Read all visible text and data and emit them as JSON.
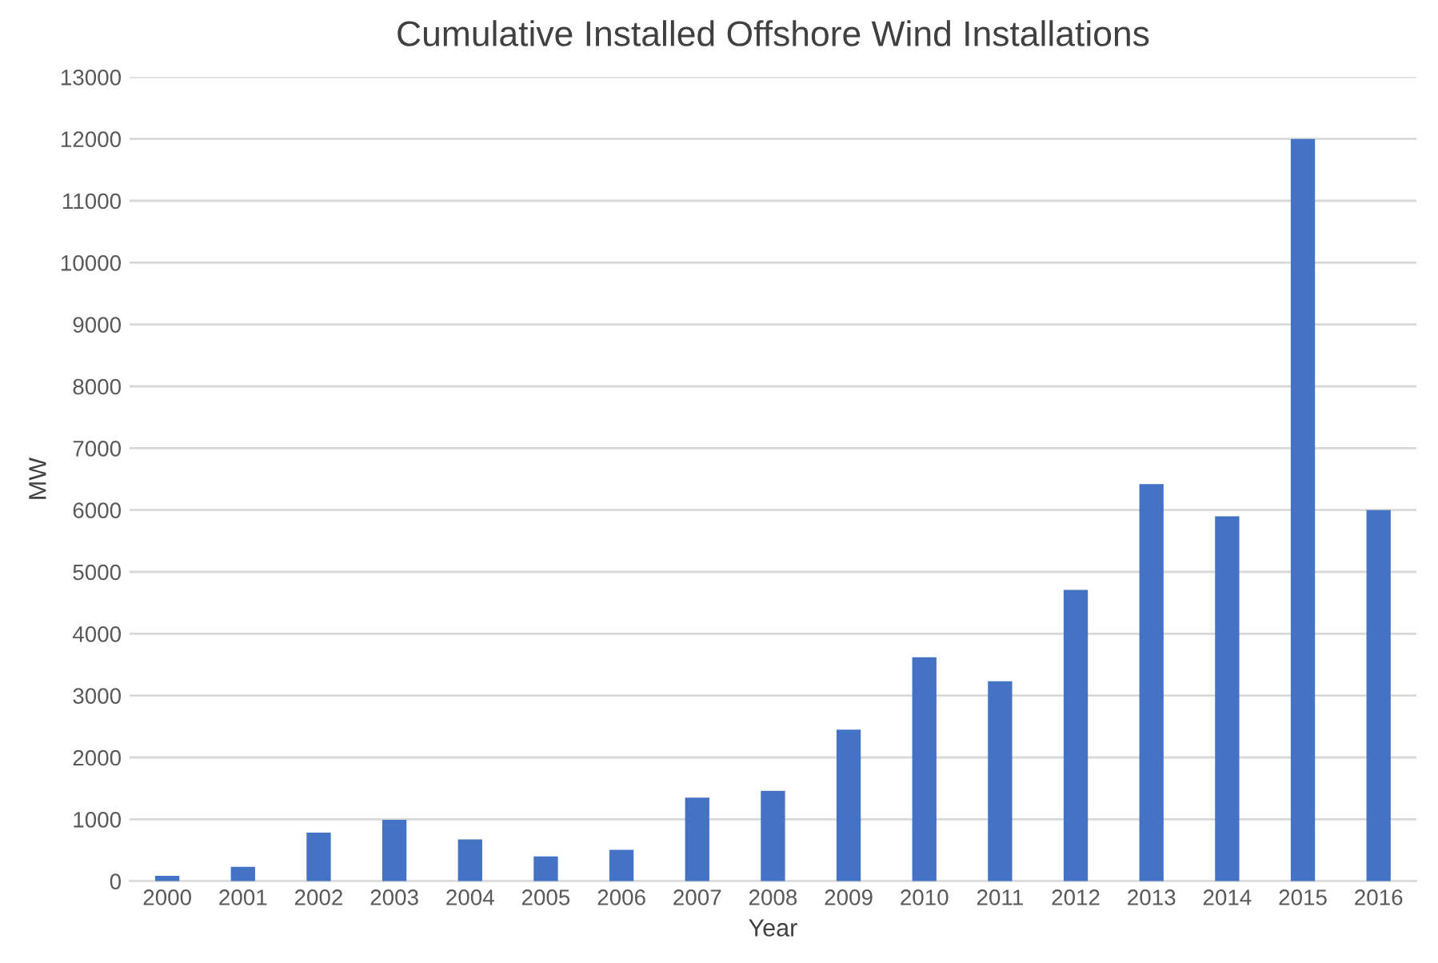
{
  "chart_data": {
    "type": "bar",
    "title": "Cumulative Installed Offshore Wind Installations",
    "xlabel": "Year",
    "ylabel": "MW",
    "categories": [
      "2000",
      "2001",
      "2002",
      "2003",
      "2004",
      "2005",
      "2006",
      "2007",
      "2008",
      "2009",
      "2010",
      "2011",
      "2012",
      "2013",
      "2014",
      "2015",
      "2016"
    ],
    "values": [
      85,
      230,
      785,
      990,
      675,
      400,
      505,
      1350,
      1460,
      2450,
      3620,
      3230,
      4710,
      6420,
      5900,
      12000,
      6000
    ],
    "color": "#4472c4",
    "ylim": [
      0,
      13000
    ],
    "yticks": [
      0,
      1000,
      2000,
      3000,
      4000,
      5000,
      6000,
      7000,
      8000,
      9000,
      10000,
      11000,
      12000,
      13000
    ],
    "grid": "y",
    "legend": false
  }
}
